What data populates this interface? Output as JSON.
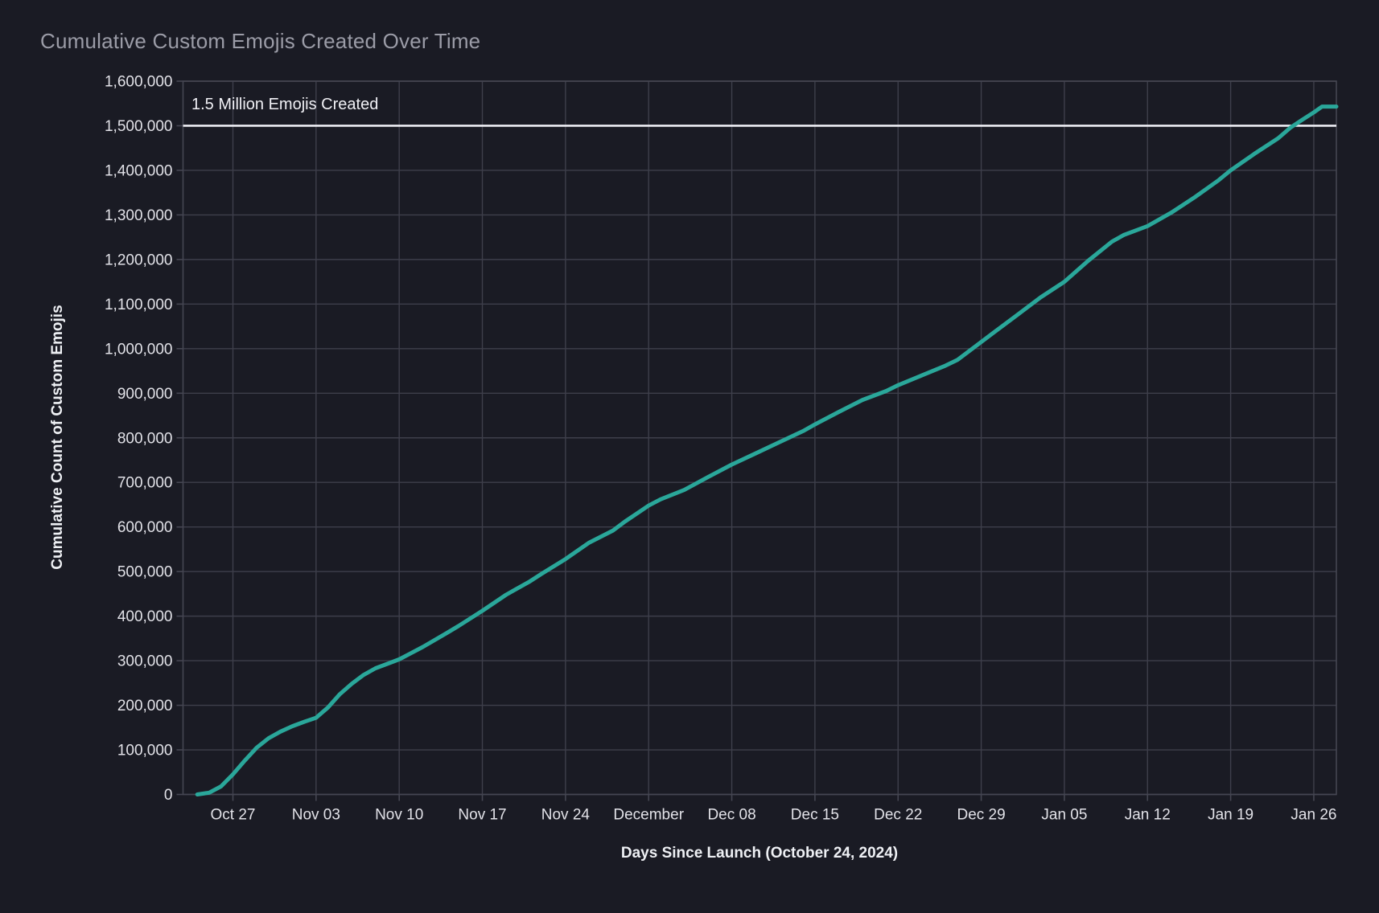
{
  "chart_data": {
    "type": "line",
    "title": "Cumulative Custom Emojis Created Over Time",
    "xlabel": "Days Since Launch (October 24, 2024)",
    "ylabel": "Cumulative Count of Custom Emojis",
    "x_domain": [
      -1.2,
      95.9
    ],
    "y_domain": [
      0,
      1600000
    ],
    "grid": true,
    "legend": false,
    "x_ticks": [
      {
        "day": 3,
        "label": "Oct 27"
      },
      {
        "day": 10,
        "label": "Nov 03"
      },
      {
        "day": 17,
        "label": "Nov 10"
      },
      {
        "day": 24,
        "label": "Nov 17"
      },
      {
        "day": 31,
        "label": "Nov 24"
      },
      {
        "day": 38,
        "label": "December"
      },
      {
        "day": 45,
        "label": "Dec 08"
      },
      {
        "day": 52,
        "label": "Dec 15"
      },
      {
        "day": 59,
        "label": "Dec 22"
      },
      {
        "day": 66,
        "label": "Dec 29"
      },
      {
        "day": 73,
        "label": "Jan 05"
      },
      {
        "day": 80,
        "label": "Jan 12"
      },
      {
        "day": 87,
        "label": "Jan 19"
      },
      {
        "day": 94,
        "label": "Jan 26"
      }
    ],
    "y_ticks": [
      {
        "value": 0,
        "label": "0"
      },
      {
        "value": 100000,
        "label": "100,000"
      },
      {
        "value": 200000,
        "label": "200,000"
      },
      {
        "value": 300000,
        "label": "300,000"
      },
      {
        "value": 400000,
        "label": "400,000"
      },
      {
        "value": 500000,
        "label": "500,000"
      },
      {
        "value": 600000,
        "label": "600,000"
      },
      {
        "value": 700000,
        "label": "700,000"
      },
      {
        "value": 800000,
        "label": "800,000"
      },
      {
        "value": 900000,
        "label": "900,000"
      },
      {
        "value": 1000000,
        "label": "1,000,000"
      },
      {
        "value": 1100000,
        "label": "1,100,000"
      },
      {
        "value": 1200000,
        "label": "1,200,000"
      },
      {
        "value": 1300000,
        "label": "1,300,000"
      },
      {
        "value": 1400000,
        "label": "1,400,000"
      },
      {
        "value": 1500000,
        "label": "1,500,000"
      },
      {
        "value": 1600000,
        "label": "1,600,000"
      }
    ],
    "annotation": {
      "label": "1.5 Million Emojis Created",
      "value": 1500000
    },
    "series": [
      {
        "name": "Cumulative Custom Emojis",
        "color": "#2aa79a",
        "points": [
          [
            0,
            0
          ],
          [
            1,
            4000
          ],
          [
            2,
            18000
          ],
          [
            3,
            45000
          ],
          [
            4,
            76000
          ],
          [
            5,
            105000
          ],
          [
            6,
            126000
          ],
          [
            7,
            141000
          ],
          [
            8,
            153000
          ],
          [
            9,
            163000
          ],
          [
            10,
            172000
          ],
          [
            11,
            195000
          ],
          [
            12,
            225000
          ],
          [
            13,
            248000
          ],
          [
            14,
            268000
          ],
          [
            15,
            283000
          ],
          [
            16,
            293000
          ],
          [
            17,
            303000
          ],
          [
            19,
            331000
          ],
          [
            21,
            362000
          ],
          [
            22,
            378000
          ],
          [
            24,
            412000
          ],
          [
            26,
            448000
          ],
          [
            28,
            478000
          ],
          [
            29,
            495000
          ],
          [
            31,
            528000
          ],
          [
            33,
            565000
          ],
          [
            35,
            592000
          ],
          [
            36,
            612000
          ],
          [
            38,
            648000
          ],
          [
            39,
            662000
          ],
          [
            41,
            683000
          ],
          [
            43,
            712000
          ],
          [
            45,
            740000
          ],
          [
            47,
            765000
          ],
          [
            49,
            790000
          ],
          [
            51,
            815000
          ],
          [
            52,
            830000
          ],
          [
            54,
            858000
          ],
          [
            56,
            885000
          ],
          [
            58,
            905000
          ],
          [
            59,
            918000
          ],
          [
            61,
            940000
          ],
          [
            63,
            962000
          ],
          [
            64,
            975000
          ],
          [
            66,
            1015000
          ],
          [
            67,
            1035000
          ],
          [
            69,
            1075000
          ],
          [
            71,
            1115000
          ],
          [
            73,
            1150000
          ],
          [
            75,
            1197000
          ],
          [
            77,
            1240000
          ],
          [
            78,
            1255000
          ],
          [
            80,
            1275000
          ],
          [
            82,
            1305000
          ],
          [
            84,
            1340000
          ],
          [
            86,
            1378000
          ],
          [
            87,
            1400000
          ],
          [
            89,
            1437000
          ],
          [
            91,
            1472000
          ],
          [
            92,
            1495000
          ],
          [
            93,
            1513000
          ],
          [
            94,
            1530000
          ],
          [
            94.7,
            1543000
          ],
          [
            95.9,
            1543000
          ]
        ]
      }
    ],
    "colors": {
      "background": "#1a1b24",
      "grid": "#3e3f4b",
      "frame": "#454652",
      "reference_line": "#eeeef4",
      "annotation_text": "#f0f0f5",
      "tick_label": "#e2e2e8",
      "axis_title": "#eef0f4",
      "title": "#9b9ca7",
      "line": "#2aa79a"
    }
  }
}
